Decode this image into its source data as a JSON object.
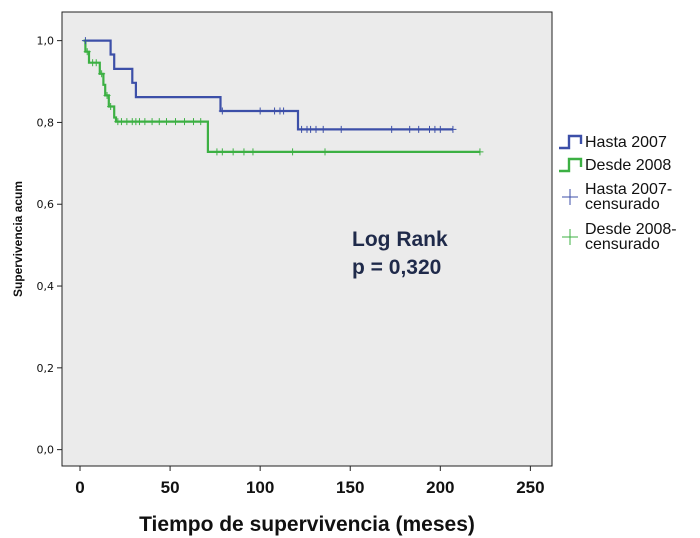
{
  "chart_data": {
    "type": "line",
    "subtype": "kaplan-meier-step",
    "title": "",
    "xlabel": "Tiempo de supervivencia (meses)",
    "ylabel": "Supervivencia acum",
    "xlim": [
      -10,
      262
    ],
    "ylim": [
      -0.04,
      1.07
    ],
    "xticks": [
      0,
      50,
      100,
      150,
      200,
      250
    ],
    "xtick_labels": [
      "0",
      "50",
      "100",
      "150",
      "200",
      "250"
    ],
    "yticks": [
      0.0,
      0.2,
      0.4,
      0.6,
      0.8,
      1.0
    ],
    "ytick_labels": [
      "0,0",
      "0,2",
      "0,4",
      "0,6",
      "0,8",
      "1,0"
    ],
    "grid": false,
    "background": "#ebebeb",
    "legend_position": "right-outside",
    "annotation": [
      "Log Rank",
      "p = 0,320"
    ],
    "series": [
      {
        "name": "Hasta 2007",
        "color": "#3c4fa8",
        "steps": [
          [
            2,
            1.0
          ],
          [
            17,
            0.966
          ],
          [
            19,
            0.931
          ],
          [
            29,
            0.897
          ],
          [
            31,
            0.862
          ],
          [
            78,
            0.828
          ],
          [
            121,
            0.783
          ],
          [
            207,
            0.783
          ]
        ]
      },
      {
        "name": "Desde 2008",
        "color": "#3cb043",
        "steps": [
          [
            2,
            1.0
          ],
          [
            3,
            0.973
          ],
          [
            5,
            0.946
          ],
          [
            11,
            0.919
          ],
          [
            13,
            0.892
          ],
          [
            14,
            0.866
          ],
          [
            16,
            0.839
          ],
          [
            19,
            0.812
          ],
          [
            20,
            0.802
          ],
          [
            71,
            0.728
          ],
          [
            222,
            0.728
          ]
        ]
      }
    ],
    "censored": [
      {
        "name": "Hasta 2007-censurado",
        "color": "#3c4fa8",
        "marker": "+",
        "points": [
          [
            3,
            1.0
          ],
          [
            79,
            0.828
          ],
          [
            100,
            0.828
          ],
          [
            108,
            0.828
          ],
          [
            111,
            0.828
          ],
          [
            113,
            0.828
          ],
          [
            123,
            0.783
          ],
          [
            126,
            0.783
          ],
          [
            128,
            0.783
          ],
          [
            131,
            0.783
          ],
          [
            135,
            0.783
          ],
          [
            145,
            0.783
          ],
          [
            173,
            0.783
          ],
          [
            183,
            0.783
          ],
          [
            188,
            0.783
          ],
          [
            194,
            0.783
          ],
          [
            197,
            0.783
          ],
          [
            200,
            0.783
          ],
          [
            207,
            0.783
          ]
        ]
      },
      {
        "name": "Desde 2008-censurado",
        "color": "#3cb043",
        "marker": "+",
        "points": [
          [
            4,
            0.973
          ],
          [
            7,
            0.946
          ],
          [
            9,
            0.946
          ],
          [
            12,
            0.919
          ],
          [
            15,
            0.866
          ],
          [
            17,
            0.839
          ],
          [
            21,
            0.802
          ],
          [
            23,
            0.802
          ],
          [
            26,
            0.802
          ],
          [
            29,
            0.802
          ],
          [
            31,
            0.802
          ],
          [
            33,
            0.802
          ],
          [
            36,
            0.802
          ],
          [
            40,
            0.802
          ],
          [
            44,
            0.802
          ],
          [
            48,
            0.802
          ],
          [
            53,
            0.802
          ],
          [
            58,
            0.802
          ],
          [
            63,
            0.802
          ],
          [
            67,
            0.802
          ],
          [
            76,
            0.728
          ],
          [
            79,
            0.728
          ],
          [
            85,
            0.728
          ],
          [
            91,
            0.728
          ],
          [
            96,
            0.728
          ],
          [
            118,
            0.728
          ],
          [
            136,
            0.728
          ],
          [
            222,
            0.728
          ]
        ]
      }
    ]
  },
  "legend": {
    "items": [
      {
        "kind": "line",
        "lines": [
          "Hasta 2007"
        ],
        "color": "#3c4fa8"
      },
      {
        "kind": "line",
        "lines": [
          "Desde 2008"
        ],
        "color": "#3cb043"
      },
      {
        "kind": "cross",
        "lines": [
          "Hasta 2007-",
          "censurado"
        ],
        "color": "#3c4fa8"
      },
      {
        "kind": "cross",
        "lines": [
          "Desde 2008-",
          "censurado"
        ],
        "color": "#3cb043"
      }
    ]
  }
}
